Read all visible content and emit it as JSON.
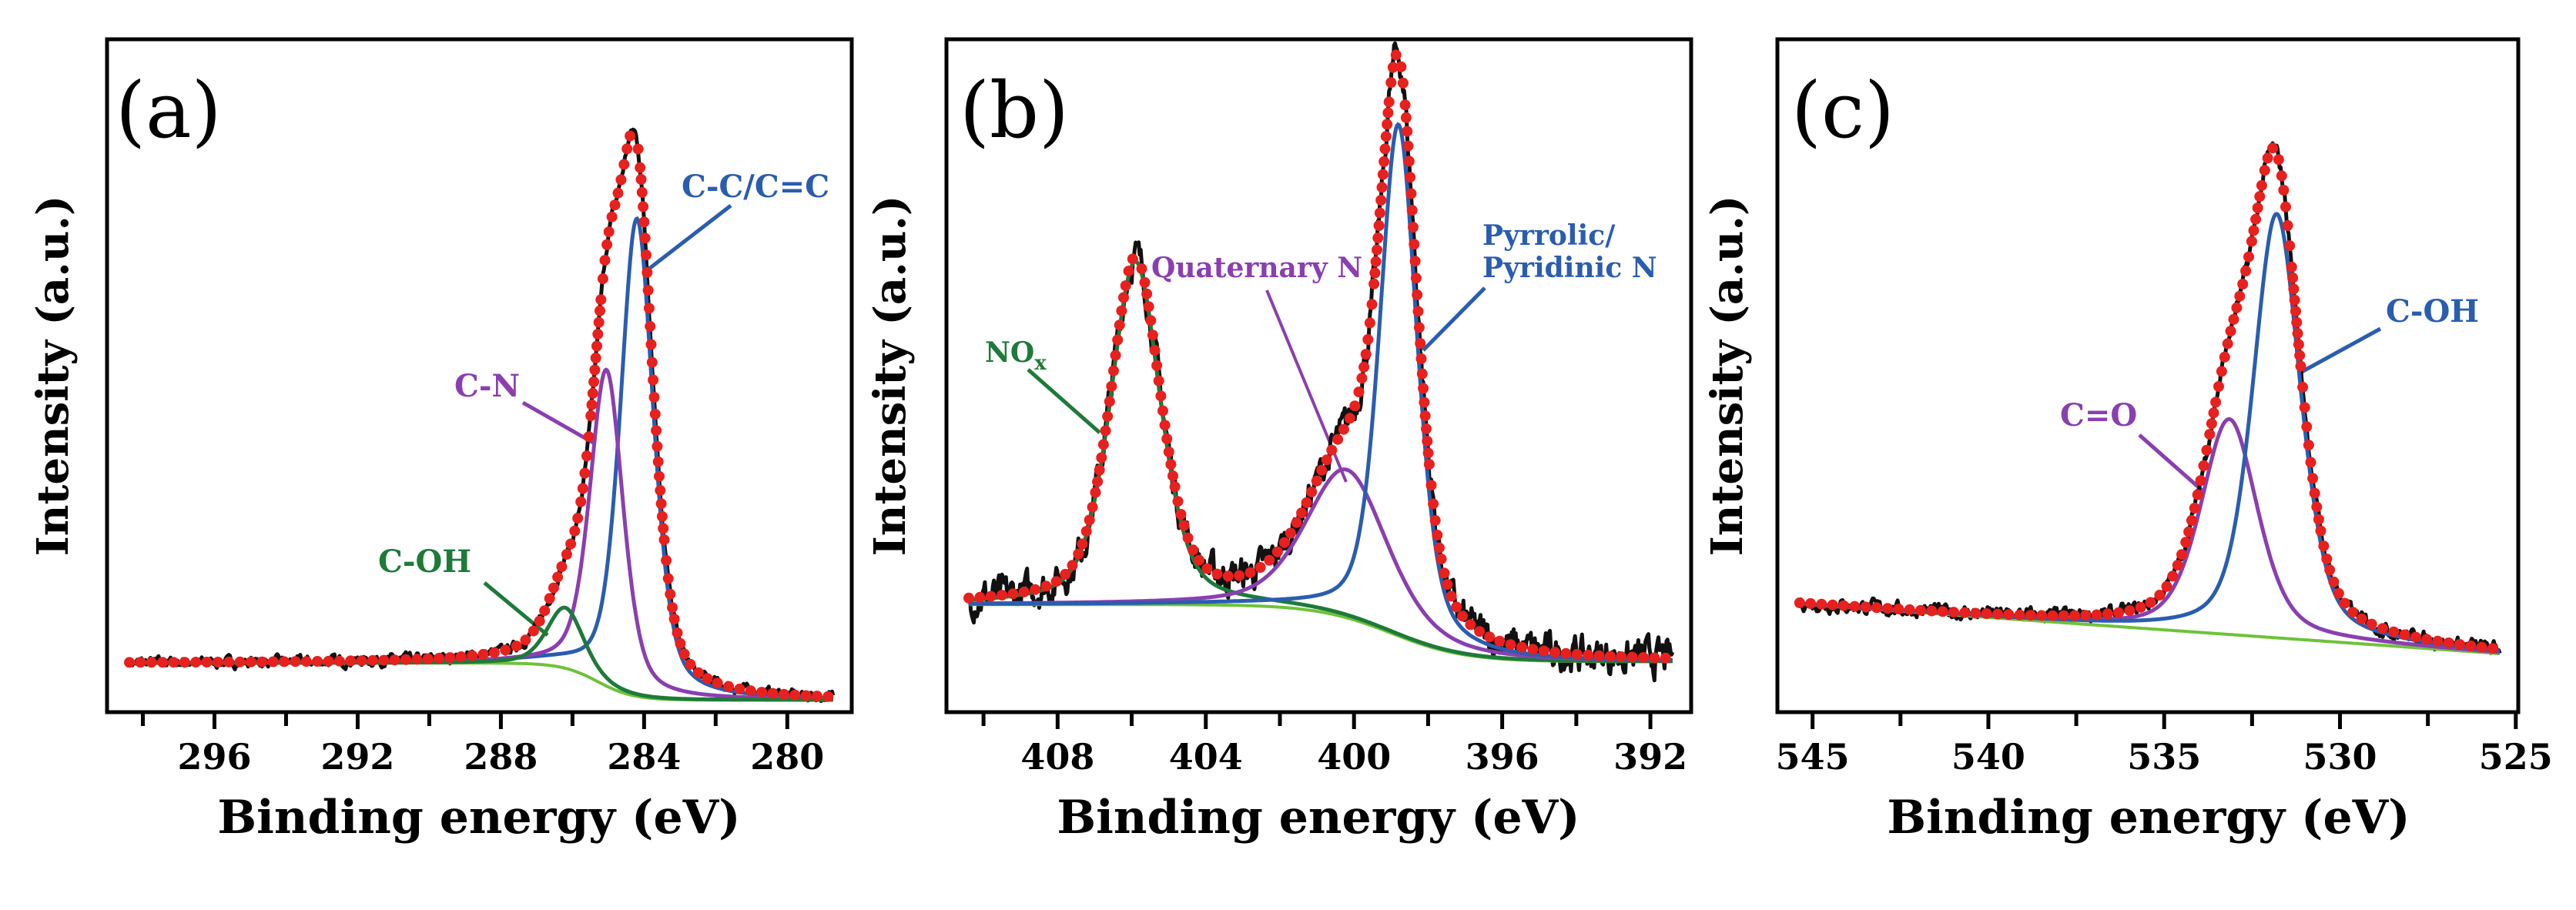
{
  "chart_data": [
    {
      "type": "line",
      "panel_label": "(a)",
      "xlabel": "Binding energy (eV)",
      "ylabel": "Intensity (a.u.)",
      "xlim": [
        299,
        278.2
      ],
      "ylim": [
        0,
        1
      ],
      "x_reversed": true,
      "xticks": [
        296,
        292,
        288,
        284,
        280
      ],
      "minor_step": 2,
      "background": {
        "type": "step",
        "high": 0.073,
        "low": 0.018,
        "center": 285.3,
        "width": 0.5,
        "color": "#6ec23a"
      },
      "components": [
        {
          "name": "C-C/C=C",
          "center": 284.2,
          "height": 0.71,
          "fwhm": 1.1,
          "color": "#2a5db0"
        },
        {
          "name": "C-N",
          "center": 285.05,
          "height": 0.47,
          "fwhm": 1.1,
          "color": "#8a3fb0"
        },
        {
          "name": "C-OH",
          "center": 286.2,
          "height": 0.09,
          "fwhm": 1.2,
          "color": "#1e7a3a"
        }
      ],
      "noise": 0.006,
      "series_colors": {
        "raw": "#111111",
        "fit": "#e8201e"
      }
    },
    {
      "type": "line",
      "panel_label": "(b)",
      "xlabel": "Binding energy (eV)",
      "ylabel": "Intensity (a.u.)",
      "xlim": [
        411,
        390.9
      ],
      "ylim": [
        0,
        1
      ],
      "x_reversed": true,
      "xticks": [
        408,
        404,
        400,
        396,
        392
      ],
      "minor_step": 2,
      "background": {
        "type": "step",
        "high": 0.16,
        "low": 0.075,
        "center": 399.0,
        "width": 1.0,
        "color": "#6ec23a"
      },
      "components": [
        {
          "name": "NOx",
          "label_main": "NO",
          "label_sub": "x",
          "center": 405.9,
          "height": 0.51,
          "fwhm": 1.6,
          "color": "#1e7a3a"
        },
        {
          "name": "Quaternary N",
          "center": 400.2,
          "height": 0.22,
          "fwhm": 2.6,
          "color": "#8a3fb0"
        },
        {
          "name": "Pyrrolic/ Pyridinic N",
          "label_line1": "Pyrrolic/",
          "label_line2": "Pyridinic N",
          "center": 398.8,
          "height": 0.76,
          "fwhm": 1.2,
          "color": "#2a5db0"
        }
      ],
      "noise": 0.02,
      "series_colors": {
        "raw": "#111111",
        "fit": "#e8201e"
      }
    },
    {
      "type": "line",
      "panel_label": "(c)",
      "xlabel": "Binding energy (eV)",
      "ylabel": "Intensity (a.u.)",
      "xlim": [
        546,
        524.93
      ],
      "ylim": [
        0,
        1
      ],
      "x_reversed": true,
      "xticks": [
        545,
        540,
        535,
        530,
        525
      ],
      "minor_step": 2.5,
      "background": {
        "type": "linear",
        "high": 0.163,
        "low": 0.085,
        "color": "#6ec23a"
      },
      "components": [
        {
          "name": "C=O",
          "center": 533.15,
          "height": 0.32,
          "fwhm": 1.9,
          "color": "#8a3fb0"
        },
        {
          "name": "C-OH",
          "center": 531.8,
          "height": 0.63,
          "fwhm": 1.6,
          "color": "#2a5db0"
        }
      ],
      "noise": 0.008,
      "series_colors": {
        "raw": "#111111",
        "fit": "#e8201e"
      }
    }
  ]
}
